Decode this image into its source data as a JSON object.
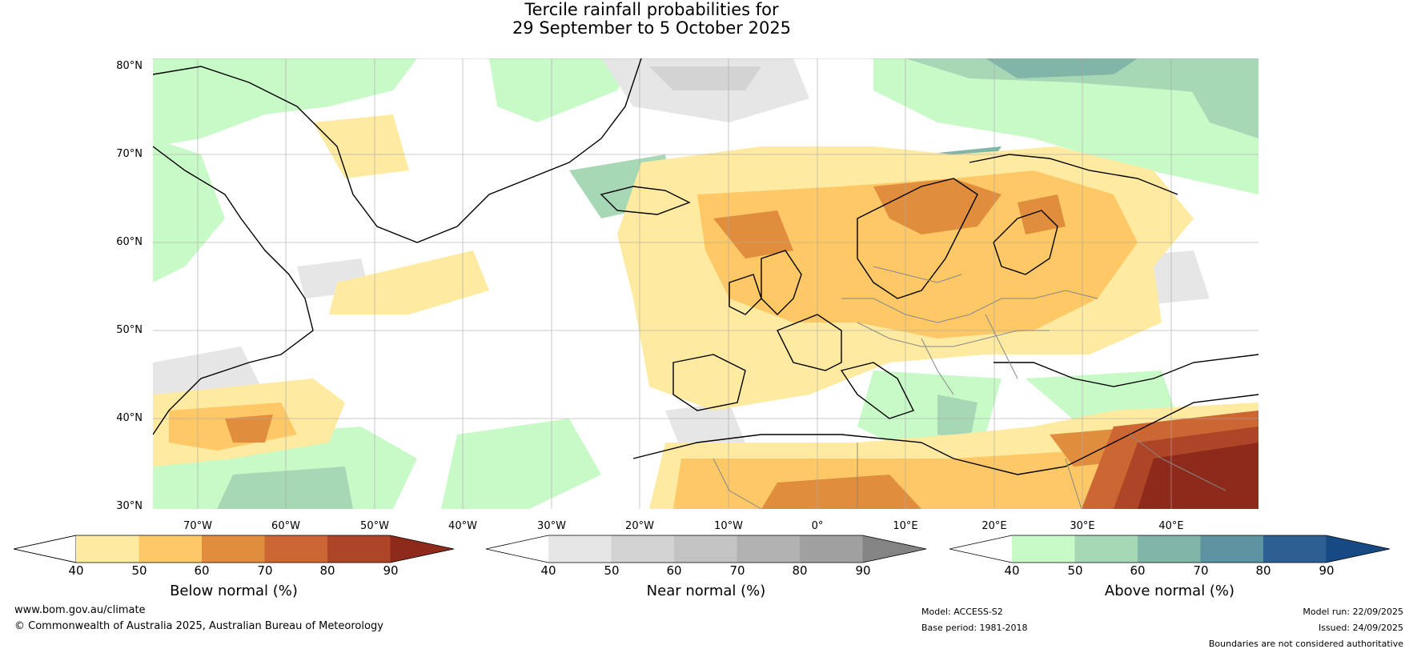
{
  "title": {
    "line1": "Tercile rainfall probabilities for",
    "line2": "29 September to 5 October 2025"
  },
  "latitude_labels": [
    "80°N",
    "70°N",
    "60°N",
    "50°N",
    "40°N",
    "30°N"
  ],
  "longitude_labels": [
    "70°W",
    "60°W",
    "50°W",
    "40°W",
    "30°W",
    "20°W",
    "10°W",
    "0°",
    "10°E",
    "20°E",
    "30°E",
    "40°E"
  ],
  "colorbars": [
    {
      "label": "Below normal (%)",
      "ticks": [
        "40",
        "50",
        "60",
        "70",
        "80",
        "90"
      ],
      "colors": [
        "#ffffff",
        "#feeaa0",
        "#fdc865",
        "#e08d3d",
        "#cc6633",
        "#ad4526",
        "#8e2a1c"
      ]
    },
    {
      "label": "Near normal (%)",
      "ticks": [
        "40",
        "50",
        "60",
        "70",
        "80",
        "90"
      ],
      "colors": [
        "#ffffff",
        "#e6e6e6",
        "#d3d3d3",
        "#c3c3c3",
        "#b2b2b2",
        "#a0a0a0",
        "#848484"
      ]
    },
    {
      "label": "Above normal (%)",
      "ticks": [
        "40",
        "50",
        "60",
        "70",
        "80",
        "90"
      ],
      "colors": [
        "#ffffff",
        "#c8fac8",
        "#a6d8b6",
        "#80b5a8",
        "#5d92a1",
        "#2d5f92",
        "#174a82"
      ]
    }
  ],
  "footer": {
    "website": "www.bom.gov.au/climate",
    "copyright": "© Commonwealth of Australia 2025, Australian Bureau of Meteorology",
    "model": "Model: ACCESS-S2",
    "base_period": "Base period: 1981-2018",
    "model_run": "Model run: 22/09/2025",
    "issued": "Issued: 24/09/2025",
    "disclaimer": "Boundaries are not considered authoritative"
  }
}
